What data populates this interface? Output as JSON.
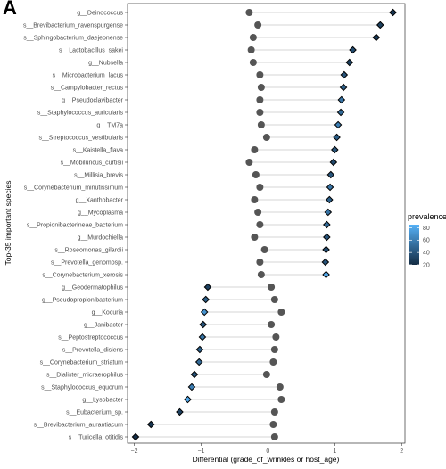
{
  "panel_label": "A",
  "chart_data": {
    "type": "scatter",
    "xlabel": "Differential (grade_of_wrinkles or host_age)",
    "ylabel": "Top-35 important species",
    "xlim": [
      -2.1,
      2.05
    ],
    "xticks": [
      -2,
      -1,
      0,
      1,
      2
    ],
    "grid": false,
    "reference_line_x": 0,
    "legend": {
      "title": "prevalence",
      "placement": "right",
      "range": [
        20,
        85
      ],
      "ticks": [
        20,
        40,
        60,
        80
      ],
      "color_low": "#132b43",
      "color_high": "#56b1f7"
    },
    "gray_series_color": "#555555",
    "species": [
      {
        "label": "g__Deinococcus",
        "differential": 1.87,
        "other": -0.28,
        "prevalence": 25
      },
      {
        "label": "s__Brevibacterium_ravenspurgense",
        "differential": 1.68,
        "other": -0.15,
        "prevalence": 30
      },
      {
        "label": "s__Sphingobacterium_daejeonense",
        "differential": 1.62,
        "other": -0.22,
        "prevalence": 28
      },
      {
        "label": "s__Lactobacillus_sakei",
        "differential": 1.27,
        "other": -0.25,
        "prevalence": 35
      },
      {
        "label": "g__Nubsella",
        "differential": 1.22,
        "other": -0.22,
        "prevalence": 30
      },
      {
        "label": "s__Microbacterium_lacus",
        "differential": 1.14,
        "other": -0.12,
        "prevalence": 40
      },
      {
        "label": "s__Campylobacter_rectus",
        "differential": 1.13,
        "other": -0.1,
        "prevalence": 45
      },
      {
        "label": "g__Pseudoclavibacter",
        "differential": 1.1,
        "other": -0.12,
        "prevalence": 55
      },
      {
        "label": "s__Staphylococcus_auricularis",
        "differential": 1.09,
        "other": -0.12,
        "prevalence": 50
      },
      {
        "label": "g__TM7a",
        "differential": 1.05,
        "other": -0.1,
        "prevalence": 60
      },
      {
        "label": "s__Streptococcus_vestibularis",
        "differential": 1.03,
        "other": -0.02,
        "prevalence": 45
      },
      {
        "label": "s__Kaistella_flava",
        "differential": 1.0,
        "other": -0.2,
        "prevalence": 40
      },
      {
        "label": "s__Mobiluncus_curtisii",
        "differential": 0.98,
        "other": -0.28,
        "prevalence": 35
      },
      {
        "label": "s__Millisia_brevis",
        "differential": 0.94,
        "other": -0.18,
        "prevalence": 40
      },
      {
        "label": "s__Corynebacterium_minutissimum",
        "differential": 0.93,
        "other": -0.12,
        "prevalence": 55
      },
      {
        "label": "g__Xanthobacter",
        "differential": 0.92,
        "other": -0.2,
        "prevalence": 45
      },
      {
        "label": "g__Mycoplasma",
        "differential": 0.9,
        "other": -0.15,
        "prevalence": 55
      },
      {
        "label": "s__Propionibacterineae_bacterium",
        "differential": 0.88,
        "other": -0.12,
        "prevalence": 50
      },
      {
        "label": "g__Murdochiella",
        "differential": 0.88,
        "other": -0.2,
        "prevalence": 40
      },
      {
        "label": "s__Roseomonas_gilardii",
        "differential": 0.87,
        "other": -0.05,
        "prevalence": 35
      },
      {
        "label": "s__Prevotella_genomosp.",
        "differential": 0.86,
        "other": -0.12,
        "prevalence": 40
      },
      {
        "label": "s__Corynebacterium_xerosis",
        "differential": 0.87,
        "other": -0.1,
        "prevalence": 80
      },
      {
        "label": "g__Geodermatophilus",
        "differential": -0.9,
        "other": 0.05,
        "prevalence": 30
      },
      {
        "label": "g__Pseudopropionibacterium",
        "differential": -0.93,
        "other": 0.1,
        "prevalence": 45
      },
      {
        "label": "g__Kocuria",
        "differential": -0.95,
        "other": 0.2,
        "prevalence": 70
      },
      {
        "label": "g__Janibacter",
        "differential": -0.97,
        "other": 0.05,
        "prevalence": 40
      },
      {
        "label": "s__Peptostreptococcus",
        "differential": -0.98,
        "other": 0.12,
        "prevalence": 55
      },
      {
        "label": "s__Prevotella_disiens",
        "differential": -1.02,
        "other": 0.1,
        "prevalence": 45
      },
      {
        "label": "s__Corynebacterium_striatum",
        "differential": -1.03,
        "other": 0.08,
        "prevalence": 50
      },
      {
        "label": "s__Dialister_micraerophilus",
        "differential": -1.1,
        "other": -0.02,
        "prevalence": 40
      },
      {
        "label": "s__Staphylococcus_equorum",
        "differential": -1.14,
        "other": 0.18,
        "prevalence": 60
      },
      {
        "label": "g__Lysobacter",
        "differential": -1.2,
        "other": 0.2,
        "prevalence": 80
      },
      {
        "label": "s__Eubacterium_sp.",
        "differential": -1.32,
        "other": 0.1,
        "prevalence": 30
      },
      {
        "label": "s__Brevibacterium_aurantiacum",
        "differential": -1.75,
        "other": 0.08,
        "prevalence": 25
      },
      {
        "label": "s__Turicella_otitidis",
        "differential": -1.98,
        "other": 0.1,
        "prevalence": 22
      }
    ]
  }
}
